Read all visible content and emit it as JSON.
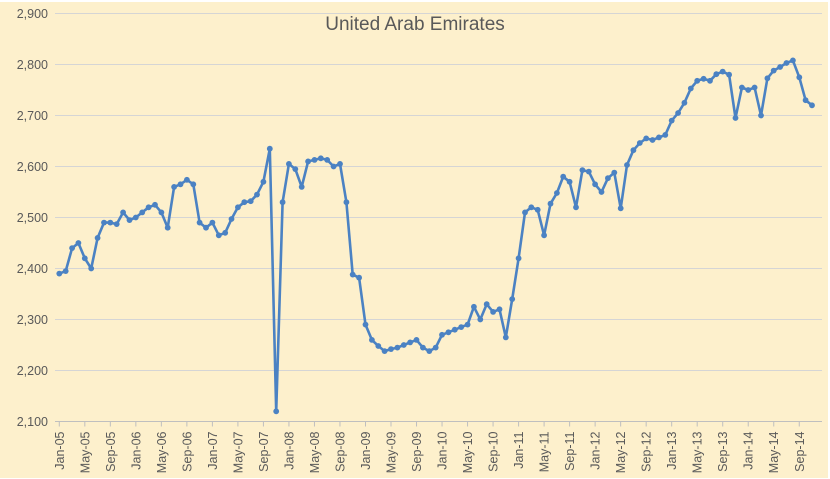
{
  "title": "United Arab Emirates",
  "colors": {
    "background": "#fdf0cc",
    "line": "#4b82c3",
    "marker": "#4b82c3",
    "grid": "#d5d5d5",
    "axis": "#bfbfbf",
    "text": "#595959"
  },
  "chart_data": {
    "type": "line",
    "title": "United Arab Emirates",
    "xlabel": "",
    "ylabel": "",
    "ylim": [
      2100,
      2900
    ],
    "y_tick_step": 100,
    "grid": true,
    "legend": "none",
    "marker": "circle",
    "y_tick_labels": [
      "2,100",
      "2,200",
      "2,300",
      "2,400",
      "2,500",
      "2,600",
      "2,700",
      "2,800",
      "2,900"
    ],
    "x_tick_labels": [
      "Jan-05",
      "May-05",
      "Sep-05",
      "Jan-06",
      "May-06",
      "Sep-06",
      "Jan-07",
      "May-07",
      "Sep-07",
      "Jan-08",
      "May-08",
      "Sep-08",
      "Jan-09",
      "May-09",
      "Sep-09",
      "Jan-10",
      "May-10",
      "Sep-10",
      "Jan-11",
      "May-11",
      "Sep-11",
      "Jan-12",
      "May-12",
      "Sep-12",
      "Jan-13",
      "May-13",
      "Sep-13",
      "Jan-14",
      "May-14",
      "Sep-14"
    ],
    "x_tick_every_n_months": 4,
    "start_month": "Jan-05",
    "end_month": "Nov-14",
    "values": [
      2390,
      2395,
      2440,
      2450,
      2420,
      2400,
      2460,
      2490,
      2490,
      2487,
      2510,
      2495,
      2500,
      2510,
      2520,
      2525,
      2510,
      2480,
      2560,
      2565,
      2574,
      2565,
      2490,
      2480,
      2490,
      2465,
      2470,
      2497,
      2520,
      2530,
      2532,
      2545,
      2570,
      2635,
      2120,
      2530,
      2605,
      2595,
      2560,
      2610,
      2613,
      2616,
      2613,
      2600,
      2605,
      2530,
      2388,
      2382,
      2290,
      2260,
      2248,
      2238,
      2242,
      2245,
      2250,
      2255,
      2260,
      2245,
      2238,
      2245,
      2270,
      2275,
      2280,
      2285,
      2290,
      2325,
      2300,
      2330,
      2315,
      2320,
      2265,
      2340,
      2420,
      2510,
      2520,
      2515,
      2465,
      2527,
      2548,
      2580,
      2570,
      2520,
      2593,
      2590,
      2565,
      2550,
      2577,
      2588,
      2518,
      2603,
      2632,
      2646,
      2655,
      2652,
      2657,
      2662,
      2690,
      2705,
      2725,
      2753,
      2768,
      2772,
      2768,
      2781,
      2786,
      2780,
      2695,
      2755,
      2750,
      2755,
      2700,
      2773,
      2788,
      2795,
      2803,
      2808,
      2775,
      2730,
      2720
    ]
  }
}
